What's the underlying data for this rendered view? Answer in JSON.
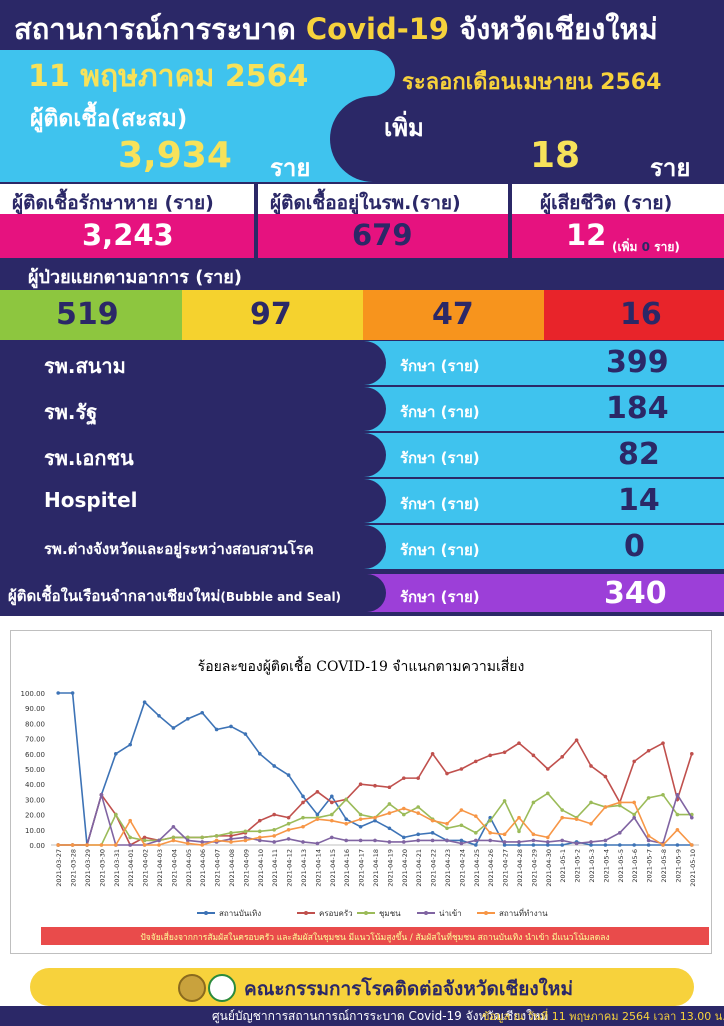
{
  "header": {
    "title_prefix": "สถานการณ์การระบาด ",
    "title_highlight": "Covid-19",
    "title_suffix": " จังหวัดเชียงใหม่",
    "date": "11 พฤษภาคม 2564",
    "wave_label": "ระลอกเดือนเมษายน 2564"
  },
  "cumulative": {
    "label": "ผู้ติดเชื้อ(สะสม)",
    "value": "3,934",
    "unit": "ราย"
  },
  "increase": {
    "label": "เพิ่ม",
    "value": "18",
    "unit": "ราย"
  },
  "summary": {
    "recovered_label": "ผู้ติดเชื้อรักษาหาย (ราย)",
    "recovered_value": "3,243",
    "in_hospital_label": "ผู้ติดเชื้ออยู่ในรพ.(ราย)",
    "in_hospital_value": "679",
    "deaths_label": "ผู้เสียชีวิต (ราย)",
    "deaths_value": "12",
    "deaths_increase_prefix": "(เพิ่ม",
    "deaths_increase_value": "0",
    "deaths_increase_suffix": "ราย)"
  },
  "symptoms": {
    "label": "ผู้ป่วยแยกตามอาการ (ราย)",
    "levels": [
      {
        "value": "519",
        "color": "#8dc63f"
      },
      {
        "value": "97",
        "color": "#f5d22e"
      },
      {
        "value": "47",
        "color": "#f7941d"
      },
      {
        "value": "16",
        "color": "#e8242a"
      }
    ]
  },
  "hospitals": [
    {
      "name": "รพ.สนาม",
      "treat": "รักษา (ราย)",
      "value": "399"
    },
    {
      "name": "รพ.รัฐ",
      "treat": "รักษา (ราย)",
      "value": "184"
    },
    {
      "name": "รพ.เอกชน",
      "treat": "รักษา (ราย)",
      "value": "82"
    },
    {
      "name": "Hospitel",
      "treat": "รักษา (ราย)",
      "value": "14"
    },
    {
      "name": "รพ.ต่างจังหวัดและอยู่ระหว่างสอบสวนโรค",
      "treat": "รักษา (ราย)",
      "value": "0"
    }
  ],
  "bubble": {
    "name": "ผู้ติดเชื้อในเรือนจำกลางเชียงใหม่",
    "name_en": "(Bubble and Seal)",
    "treat": "รักษา (ราย)",
    "value": "340"
  },
  "chart_data": {
    "type": "line",
    "title": "ร้อยละของผู้ติดเชื้อ COVID-19 จำแนกตามความเสี่ยง",
    "ylim": [
      0,
      100
    ],
    "yticks": [
      "0.00",
      "10.00",
      "20.00",
      "30.00",
      "40.00",
      "50.00",
      "60.00",
      "70.00",
      "80.00",
      "90.00",
      "100.00"
    ],
    "x": [
      "2021-03-27",
      "2021-03-28",
      "2021-03-29",
      "2021-03-30",
      "2021-03-31",
      "2021-04-01",
      "2021-04-02",
      "2021-04-03",
      "2021-04-04",
      "2021-04-05",
      "2021-04-06",
      "2021-04-07",
      "2021-04-08",
      "2021-04-09",
      "2021-04-10",
      "2021-04-11",
      "2021-04-12",
      "2021-04-13",
      "2021-04-14",
      "2021-04-15",
      "2021-04-16",
      "2021-04-17",
      "2021-04-18",
      "2021-04-19",
      "2021-04-20",
      "2021-04-21",
      "2021-04-22",
      "2021-04-23",
      "2021-04-24",
      "2021-04-25",
      "2021-04-26",
      "2021-04-27",
      "2021-04-28",
      "2021-04-29",
      "2021-04-30",
      "2021-05-01",
      "2021-05-02",
      "2021-05-03",
      "2021-05-04",
      "2021-05-05",
      "2021-05-06",
      "2021-05-07",
      "2021-05-08",
      "2021-05-09",
      "2021-05-10"
    ],
    "xticks_shown": [
      "2021-03-27",
      "2021-03-28",
      "2021-03-29",
      "2021-03-30",
      "2021-03-31",
      "2021-04-01",
      "2021-04-02",
      "2021-04-03",
      "2021-04-04",
      "2021-04-05",
      "2021-04-06",
      "2021-04-07",
      "2021-04-08",
      "2021-04-09",
      "2021-04-10",
      "2021-04-11",
      "2021-04-12",
      "2021-04-13",
      "2021-04-14",
      "2021-04-15",
      "2021-04-16",
      "2021-04-17",
      "2021-04-18",
      "2021-04-19",
      "2021-04-20",
      "2021-04-21",
      "2021-04-22",
      "2021-04-23",
      "2021-04-24",
      "2021-04-25",
      "2021-04-26",
      "2021-04-27",
      "2021-04-28",
      "2021-04-29",
      "2021-04-30",
      "2021-05-1",
      "2021-05-2",
      "2021-05-3",
      "2021-05-4",
      "2021-05-5",
      "2021-05-6",
      "2021-05-7",
      "2021-05-8",
      "2021-05-9",
      "2021-05-10"
    ],
    "series": [
      {
        "name": "สถานบันเทิง",
        "color": "#3d73b6",
        "values": [
          100,
          100,
          0,
          33,
          60,
          66,
          94,
          85,
          77,
          83,
          87,
          76,
          78,
          73,
          60,
          52,
          46,
          32,
          20,
          32,
          17,
          12,
          16,
          11,
          5,
          7,
          8,
          3,
          3,
          0,
          18,
          0,
          0,
          0,
          0,
          0,
          2,
          0,
          0,
          0,
          0,
          0,
          0,
          0,
          0
        ]
      },
      {
        "name": "ครอบครัว",
        "color": "#c0504d",
        "values": [
          0,
          0,
          0,
          33,
          20,
          0,
          5,
          3,
          5,
          5,
          5,
          6,
          6,
          8,
          16,
          20,
          18,
          28,
          35,
          28,
          30,
          40,
          39,
          38,
          44,
          44,
          60,
          47,
          50,
          55,
          59,
          61,
          67,
          59,
          50,
          58,
          69,
          52,
          45,
          28,
          55,
          62,
          67,
          30,
          60
        ]
      },
      {
        "name": "ชุมชน",
        "color": "#9bbb59",
        "values": [
          0,
          0,
          0,
          0,
          20,
          5,
          3,
          3,
          5,
          5,
          5,
          6,
          8,
          9,
          9,
          10,
          14,
          18,
          18,
          20,
          30,
          20,
          18,
          27,
          20,
          25,
          17,
          11,
          13,
          8,
          16,
          29,
          9,
          28,
          34,
          23,
          18,
          28,
          25,
          26,
          20,
          31,
          33,
          20,
          20
        ]
      },
      {
        "name": "น่าเข้า",
        "color": "#8064a2",
        "values": [
          0,
          0,
          0,
          33,
          0,
          0,
          0,
          3,
          12,
          3,
          2,
          2,
          4,
          5,
          3,
          2,
          4,
          2,
          1,
          5,
          3,
          3,
          3,
          2,
          2,
          3,
          3,
          3,
          1,
          3,
          3,
          2,
          2,
          3,
          2,
          3,
          1,
          2,
          3,
          8,
          18,
          3,
          1,
          33,
          18
        ]
      },
      {
        "name": "สถานที่ทำงาน",
        "color": "#f79646",
        "values": [
          0,
          0,
          0,
          0,
          0,
          16,
          0,
          0,
          3,
          1,
          0,
          3,
          2,
          3,
          5,
          6,
          10,
          12,
          17,
          16,
          14,
          17,
          18,
          21,
          24,
          21,
          16,
          14,
          23,
          19,
          8,
          7,
          18,
          7,
          5,
          18,
          17,
          14,
          25,
          28,
          28,
          6,
          0,
          10,
          0
        ]
      }
    ],
    "note": "ปัจจัยเสี่ยงจากการสัมผัสในครอบครัว และสัมผัสในชุมชน มีแนวโน้มสูงขึ้น / สัมผัสในที่ชุมชน สถานบันเทิง นำเข้า มีแนวโน้มลดลง"
  },
  "footer": {
    "committee": "คณะกรรมการโรคติดต่อจังหวัดเชียงใหม่",
    "center": "ศูนย์บัญชาการสถานการณ์การระบาด Covid-19 จังหวัดเชียงใหม่",
    "data_note": "ข้อมูล ณ วันที่ 11 พฤษภาคม 2564  เวลา 13.00 น."
  }
}
